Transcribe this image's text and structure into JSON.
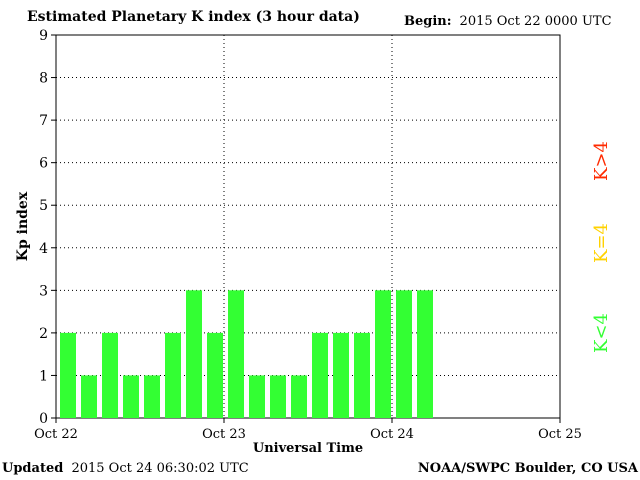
{
  "header": {
    "title": "Estimated Planetary K index (3 hour data)",
    "begin_label": "Begin:",
    "begin_value": "2015 Oct 22 0000 UTC"
  },
  "footer": {
    "updated_label": "Updated",
    "updated_value": "2015 Oct 24 06:30:02 UTC",
    "source": "NOAA/SWPC Boulder, CO USA"
  },
  "legend": [
    {
      "label": "K>4",
      "color": "#ff2a00"
    },
    {
      "label": "K=4",
      "color": "#ffd200"
    },
    {
      "label": "K<4",
      "color": "#33ff33"
    }
  ],
  "chart_data": {
    "type": "bar",
    "title": "Estimated Planetary K index (3 hour data)",
    "xlabel": "Universal Time",
    "ylabel": "Kp index",
    "ylim": [
      0,
      9
    ],
    "yticks": [
      0,
      1,
      2,
      3,
      4,
      5,
      6,
      7,
      8,
      9
    ],
    "xlim_days": [
      0,
      3
    ],
    "xtick_labels": [
      "Oct 22",
      "Oct 23",
      "Oct 24",
      "Oct 25"
    ],
    "interval_hours": 3,
    "values": [
      2,
      1,
      2,
      1,
      1,
      2,
      3,
      2,
      3,
      1,
      1,
      1,
      2,
      2,
      2,
      3,
      3,
      3
    ],
    "bar_color": "#33ff33",
    "grid": "dotted",
    "legend_position": "right"
  }
}
